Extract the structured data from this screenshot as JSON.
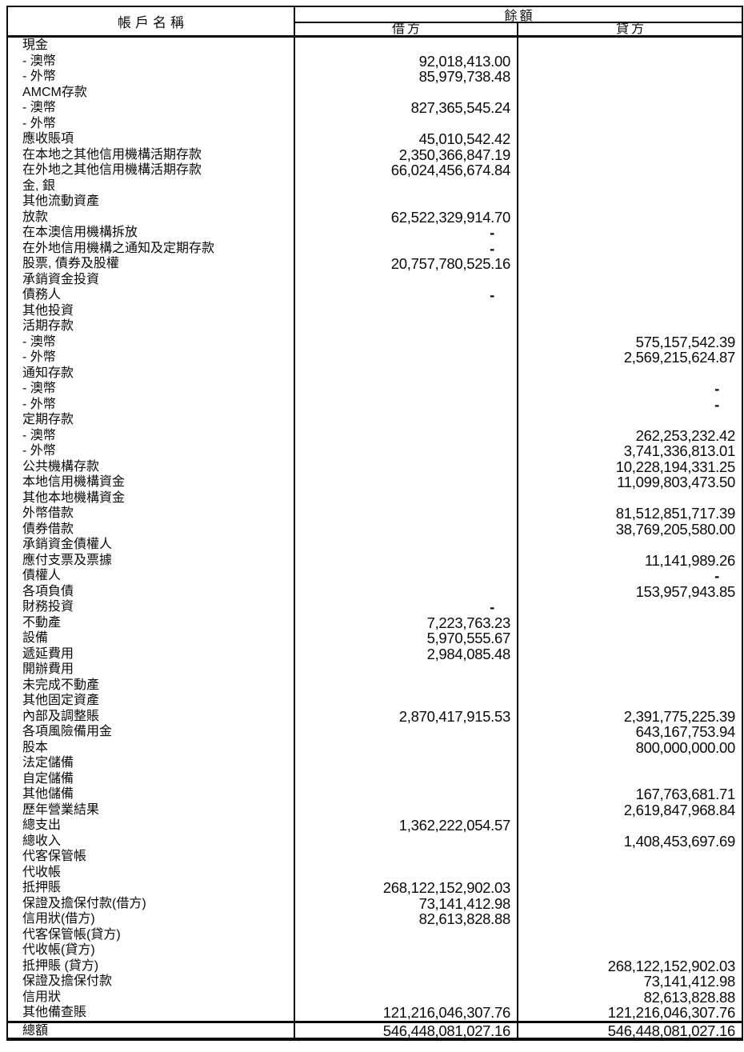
{
  "table": {
    "header": {
      "account_name": "帳戶名稱",
      "balance": "餘額",
      "debit": "借方",
      "credit": "貸方"
    },
    "rows": [
      {
        "label": "現金",
        "debit": "",
        "credit": ""
      },
      {
        "label": "- 澳幣",
        "debit": "92,018,413.00",
        "credit": ""
      },
      {
        "label": "- 外幣",
        "debit": "85,979,738.48",
        "credit": ""
      },
      {
        "label": "AMCM存款",
        "debit": "",
        "credit": ""
      },
      {
        "label": "- 澳幣",
        "debit": "827,365,545.24",
        "credit": ""
      },
      {
        "label": "- 外幣",
        "debit": "",
        "credit": ""
      },
      {
        "label": "應收賬項",
        "debit": "45,010,542.42",
        "credit": ""
      },
      {
        "label": "在本地之其他信用機構活期存款",
        "debit": "2,350,366,847.19",
        "credit": ""
      },
      {
        "label": "在外地之其他信用機構活期存款",
        "debit": "66,024,456,674.84",
        "credit": ""
      },
      {
        "label": "金, 銀",
        "debit": "",
        "credit": ""
      },
      {
        "label": "其他流動資產",
        "debit": "",
        "credit": ""
      },
      {
        "label": "放款",
        "debit": "62,522,329,914.70",
        "credit": ""
      },
      {
        "label": "在本澳信用機構拆放",
        "debit": "-",
        "credit": ""
      },
      {
        "label": "在外地信用機構之通知及定期存款",
        "debit": "-",
        "credit": ""
      },
      {
        "label": "股票, 債券及股權",
        "debit": "20,757,780,525.16",
        "credit": ""
      },
      {
        "label": "承銷資金投資",
        "debit": "",
        "credit": ""
      },
      {
        "label": "債務人",
        "debit": "-",
        "credit": ""
      },
      {
        "label": "其他投資",
        "debit": "",
        "credit": ""
      },
      {
        "label": "活期存款",
        "debit": "",
        "credit": ""
      },
      {
        "label": "- 澳幣",
        "debit": "",
        "credit": "575,157,542.39"
      },
      {
        "label": "- 外幣",
        "debit": "",
        "credit": "2,569,215,624.87"
      },
      {
        "label": "通知存款",
        "debit": "",
        "credit": ""
      },
      {
        "label": "- 澳幣",
        "debit": "",
        "credit": "-"
      },
      {
        "label": "- 外幣",
        "debit": "",
        "credit": "-"
      },
      {
        "label": "定期存款",
        "debit": "",
        "credit": ""
      },
      {
        "label": "- 澳幣",
        "debit": "",
        "credit": "262,253,232.42"
      },
      {
        "label": "- 外幣",
        "debit": "",
        "credit": "3,741,336,813.01"
      },
      {
        "label": "公共機構存款",
        "debit": "",
        "credit": "10,228,194,331.25"
      },
      {
        "label": "本地信用機構資金",
        "debit": "",
        "credit": "11,099,803,473.50"
      },
      {
        "label": "其他本地機構資金",
        "debit": "",
        "credit": ""
      },
      {
        "label": "外幣借款",
        "debit": "",
        "credit": "81,512,851,717.39"
      },
      {
        "label": "債券借款",
        "debit": "",
        "credit": "38,769,205,580.00"
      },
      {
        "label": "承銷資金債權人",
        "debit": "",
        "credit": ""
      },
      {
        "label": "應付支票及票據",
        "debit": "",
        "credit": "11,141,989.26"
      },
      {
        "label": "債權人",
        "debit": "",
        "credit": "-"
      },
      {
        "label": "各項負債",
        "debit": "",
        "credit": "153,957,943.85"
      },
      {
        "label": "財務投資",
        "debit": "-",
        "credit": ""
      },
      {
        "label": "不動產",
        "debit": "7,223,763.23",
        "credit": ""
      },
      {
        "label": "設備",
        "debit": "5,970,555.67",
        "credit": ""
      },
      {
        "label": "遞延費用",
        "debit": "2,984,085.48",
        "credit": ""
      },
      {
        "label": "開辦費用",
        "debit": "",
        "credit": ""
      },
      {
        "label": "未完成不動產",
        "debit": "",
        "credit": ""
      },
      {
        "label": "其他固定資產",
        "debit": "",
        "credit": ""
      },
      {
        "label": "內部及調整賬",
        "debit": "2,870,417,915.53",
        "credit": "2,391,775,225.39"
      },
      {
        "label": "各項風險備用金",
        "debit": "",
        "credit": "643,167,753.94"
      },
      {
        "label": "股本",
        "debit": "",
        "credit": "800,000,000.00"
      },
      {
        "label": "法定儲備",
        "debit": "",
        "credit": ""
      },
      {
        "label": "自定儲備",
        "debit": "",
        "credit": ""
      },
      {
        "label": "其他儲備",
        "debit": "",
        "credit": "167,763,681.71"
      },
      {
        "label": "歷年營業結果",
        "debit": "",
        "credit": "2,619,847,968.84"
      },
      {
        "label": "總支出",
        "debit": "1,362,222,054.57",
        "credit": ""
      },
      {
        "label": "總收入",
        "debit": "",
        "credit": "1,408,453,697.69"
      },
      {
        "label": "代客保管帳",
        "debit": "",
        "credit": ""
      },
      {
        "label": "代收帳",
        "debit": "",
        "credit": ""
      },
      {
        "label": "抵押賬",
        "debit": "268,122,152,902.03",
        "credit": ""
      },
      {
        "label": "保證及擔保付款(借方)",
        "debit": "73,141,412.98",
        "credit": ""
      },
      {
        "label": "信用狀(借方)",
        "debit": "82,613,828.88",
        "credit": ""
      },
      {
        "label": "代客保管帳(貸方)",
        "debit": "",
        "credit": ""
      },
      {
        "label": "代收帳(貸方)",
        "debit": "",
        "credit": ""
      },
      {
        "label": "抵押賬 (貸方)",
        "debit": "",
        "credit": "268,122,152,902.03"
      },
      {
        "label": "保證及擔保付款",
        "debit": "",
        "credit": "73,141,412.98"
      },
      {
        "label": "信用狀",
        "debit": "",
        "credit": "82,613,828.88"
      },
      {
        "label": "其他備查賬",
        "debit": "121,216,046,307.76",
        "credit": "121,216,046,307.76"
      }
    ],
    "total": {
      "label": "總額",
      "debit": "546,448,081,027.16",
      "credit": "546,448,081,027.16"
    }
  },
  "colors": {
    "background": "#ffffff",
    "border": "#0a0a0a",
    "text": "#0a0a0a"
  }
}
